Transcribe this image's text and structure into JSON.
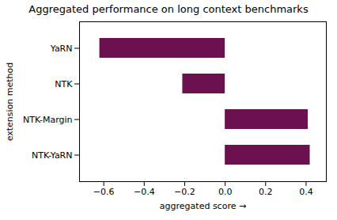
{
  "chart_data": {
    "type": "bar",
    "orientation": "horizontal",
    "title": "Aggregated performance on long context benchmarks",
    "categories": [
      "NTK-YaRN",
      "NTK-Margin",
      "NTK",
      "YaRN"
    ],
    "values": [
      0.42,
      0.41,
      -0.21,
      -0.62
    ],
    "color": "#6b1150",
    "xlabel": "aggregated score",
    "ylabel": "extension method",
    "xlim": [
      -0.72,
      0.5
    ],
    "xticks": [
      -0.6,
      -0.4,
      -0.2,
      {
        "value": 0,
        "label": "0.0"
      },
      0.2,
      0.4
    ],
    "grid": false
  }
}
